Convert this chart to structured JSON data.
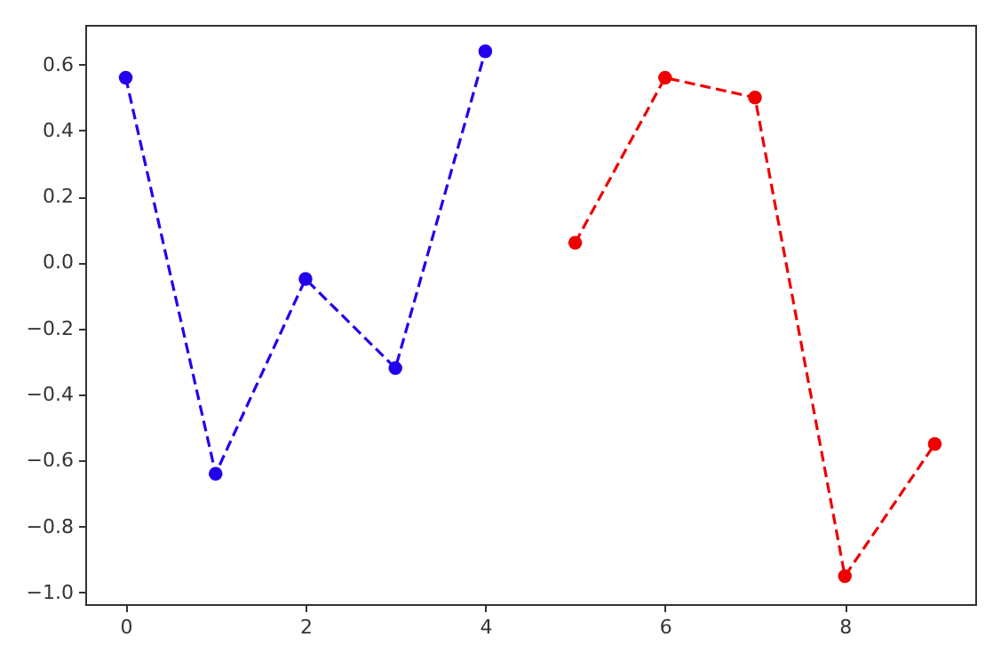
{
  "chart_data": {
    "type": "line",
    "series": [
      {
        "color": "#2200ee",
        "x": [
          0,
          1,
          2,
          3,
          4
        ],
        "values": [
          0.56,
          -0.64,
          -0.05,
          -0.32,
          0.64
        ]
      },
      {
        "color": "#ee0000",
        "x": [
          5,
          6,
          7,
          8,
          9
        ],
        "values": [
          0.06,
          0.56,
          0.5,
          -0.95,
          -0.55
        ]
      }
    ],
    "xlim": [
      -0.45,
      9.45
    ],
    "xticks": [
      0,
      2,
      4,
      6,
      8
    ],
    "ylim": [
      -1.035,
      0.72
    ],
    "yticks": [
      {
        "value": -1,
        "label": "−1.0"
      },
      {
        "value": -0.8,
        "label": "−0.8"
      },
      {
        "value": -0.6,
        "label": "−0.6"
      },
      {
        "value": -0.4,
        "label": "−0.4"
      },
      {
        "value": -0.2,
        "label": "−0.2"
      },
      {
        "value": 0,
        "label": "0.0"
      },
      {
        "value": 0.2,
        "label": "0.2"
      },
      {
        "value": 0.4,
        "label": "0.4"
      },
      {
        "value": 0.6,
        "label": "0.6"
      }
    ],
    "grid": false,
    "marker": "circle",
    "line_style": "dashed"
  }
}
